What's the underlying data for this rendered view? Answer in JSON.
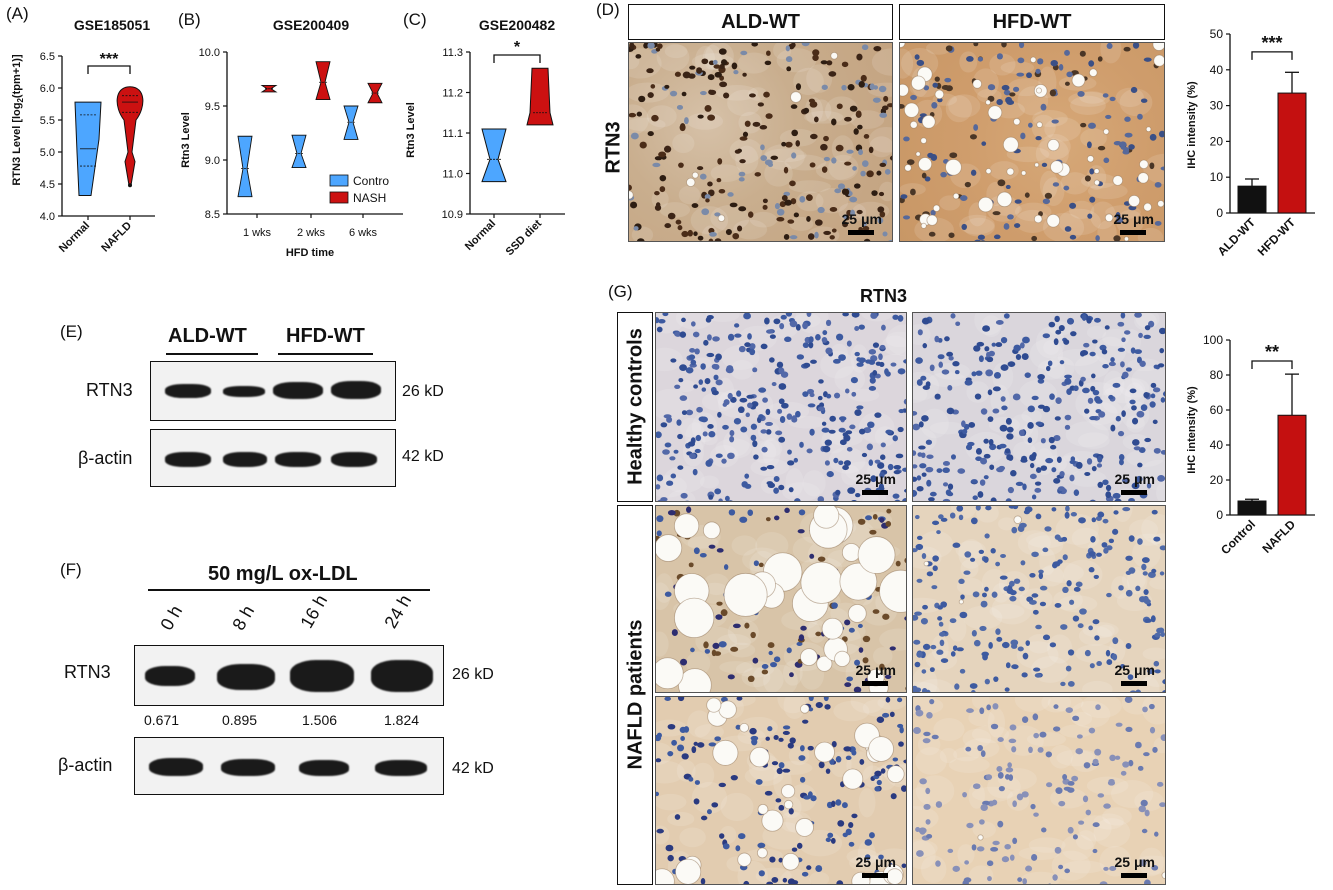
{
  "panels": {
    "A": {
      "label": "(A)",
      "title": "GSE185051",
      "ylabel": "RTN3 Level [log2(tpm+1)]",
      "ylabel_pre": "RTN3 Level [log",
      "ylabel_sub": "2",
      "ylabel_post": "(tpm+1)]",
      "sig": "***"
    },
    "B": {
      "label": "(B)",
      "title": "GSE200409",
      "ylabel": "Rtn3 Level",
      "xlabel": "HFD time"
    },
    "C": {
      "label": "(C)",
      "title": "GSE200482",
      "ylabel": "Rtn3 Level",
      "sig": "*"
    },
    "D": {
      "label": "(D)",
      "col1": "ALD-WT",
      "col2": "HFD-WT",
      "rowlabel": "RTN3",
      "scalebar": "25 μm",
      "sig": "***"
    },
    "E": {
      "label": "(E)",
      "group1": "ALD-WT",
      "group2": "HFD-WT",
      "row1": "RTN3",
      "row2": "β-actin",
      "kd1": "26 kD",
      "kd2": "42 kD"
    },
    "F": {
      "label": "(F)",
      "treatment": "50 mg/L ox-LDL",
      "times": [
        "0 h",
        "8 h",
        "16 h",
        "24 h"
      ],
      "row1": "RTN3",
      "row2": "β-actin",
      "kd1": "26 kD",
      "kd2": "42 kD",
      "ratios": [
        "0.671",
        "0.895",
        "1.506",
        "1.824"
      ]
    },
    "G": {
      "label": "(G)",
      "title": "RTN3",
      "row1": "Healthy controls",
      "row2": "NAFLD patients",
      "scalebar": "25 μm",
      "sig": "**"
    }
  },
  "chart_data": [
    {
      "id": "A",
      "type": "violin",
      "title": "GSE185051",
      "ylabel": "RTN3 Level [log2(tpm+1)]",
      "ylim": [
        4.0,
        6.5
      ],
      "yticks": [
        "4.0",
        "4.5",
        "5.0",
        "5.5",
        "6.0",
        "6.5"
      ],
      "categories": [
        "Normal",
        "NAFLD"
      ],
      "series": [
        {
          "category": "Normal",
          "color": "#4da6ff",
          "min": 4.32,
          "max": 5.78,
          "q1": 4.78,
          "median": 5.05,
          "q3": 5.58
        },
        {
          "category": "NAFLD",
          "color": "#cc1111",
          "min": 4.48,
          "max": 6.02,
          "q1": 5.62,
          "median": 5.78,
          "q3": 5.88
        }
      ],
      "significance": "***"
    },
    {
      "id": "B",
      "type": "violin",
      "title": "GSE200409",
      "ylabel": "Rtn3 Level",
      "xlabel": "HFD time",
      "ylim": [
        8.5,
        10.0
      ],
      "yticks": [
        "8.5",
        "9.0",
        "9.5",
        "10.0"
      ],
      "categories": [
        "1 wks",
        "2 wks",
        "6 wks"
      ],
      "legend": [
        "Contro",
        "NASH"
      ],
      "legend_position": "bottom-right",
      "series": [
        {
          "name": "Contro",
          "color": "#4da6ff",
          "groups": [
            {
              "min": 8.66,
              "max": 9.22,
              "median": 8.92
            },
            {
              "min": 8.93,
              "max": 9.23,
              "median": 9.06
            },
            {
              "min": 9.19,
              "max": 9.5,
              "median": 9.35
            }
          ]
        },
        {
          "name": "NASH",
          "color": "#cc1111",
          "groups": [
            {
              "min": 9.63,
              "max": 9.69,
              "median": 9.66
            },
            {
              "min": 9.56,
              "max": 9.91,
              "median": 9.72
            },
            {
              "min": 9.53,
              "max": 9.71,
              "median": 9.62
            }
          ]
        }
      ]
    },
    {
      "id": "C",
      "type": "violin",
      "title": "GSE200482",
      "ylabel": "Rtn3 Level",
      "ylim": [
        10.9,
        11.3
      ],
      "yticks": [
        "10.9",
        "11.0",
        "11.1",
        "11.2",
        "11.3"
      ],
      "categories": [
        "Normal",
        "SSD diet"
      ],
      "series": [
        {
          "category": "Normal",
          "color": "#4da6ff",
          "min": 10.98,
          "max": 11.11,
          "median": 11.035
        },
        {
          "category": "SSD diet",
          "color": "#cc1111",
          "min": 11.12,
          "max": 11.26,
          "median": 11.15
        }
      ],
      "significance": "*"
    },
    {
      "id": "D",
      "type": "bar",
      "ylabel": "IHC intensity (%)",
      "ylim": [
        0,
        50
      ],
      "yticks": [
        "0",
        "10",
        "20",
        "30",
        "40",
        "50"
      ],
      "categories": [
        "ALD-WT",
        "HFD-WT"
      ],
      "values": [
        7.5,
        33.5
      ],
      "errors": [
        2.0,
        5.8
      ],
      "colors": [
        "#111111",
        "#c41010"
      ],
      "significance": "***"
    },
    {
      "id": "G",
      "type": "bar",
      "ylabel": "IHC intensity (%)",
      "ylim": [
        0,
        100
      ],
      "yticks": [
        "0",
        "20",
        "40",
        "60",
        "80",
        "100"
      ],
      "categories": [
        "Control",
        "NAFLD"
      ],
      "values": [
        8,
        57
      ],
      "errors": [
        1.0,
        23.5
      ],
      "colors": [
        "#111111",
        "#c41010"
      ],
      "significance": "**"
    }
  ]
}
